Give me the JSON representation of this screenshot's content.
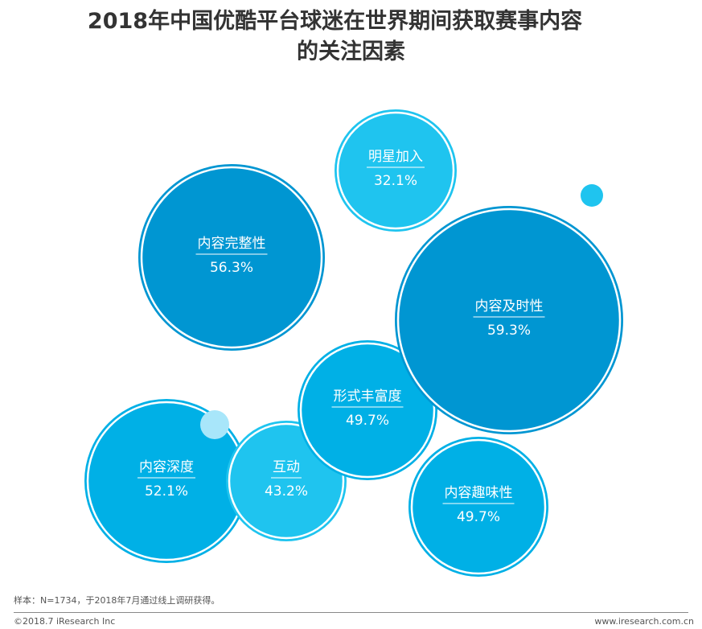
{
  "chart_data": {
    "type": "bubble",
    "title_line1": "2018年中国优酷平台球迷在世界期间获取赛事内容",
    "title_line2": "的关注因素",
    "unit": "%",
    "points": [
      {
        "label": "内容深度",
        "value": 52.1,
        "display": "52.1%",
        "color": "#00b0e6"
      },
      {
        "label": "互动",
        "value": 43.2,
        "display": "43.2%",
        "color": "#1fc4ef"
      },
      {
        "label": "形式丰富度",
        "value": 49.7,
        "display": "49.7%",
        "color": "#00b0e6"
      },
      {
        "label": "内容及时性",
        "value": 59.3,
        "display": "59.3%",
        "color": "#0096d2"
      },
      {
        "label": "内容完整性",
        "value": 56.3,
        "display": "56.3%",
        "color": "#0096d2"
      },
      {
        "label": "明星加入",
        "value": 32.1,
        "display": "32.1%",
        "color": "#1fc4ef"
      },
      {
        "label": "内容趣味性",
        "value": 49.7,
        "display": "49.7%",
        "color": "#00b0e6"
      }
    ],
    "decor_colors": [
      "#1fc4ef",
      "#a8e6fa"
    ]
  },
  "footer": {
    "note": "样本：N=1734，于2018年7月通过线上调研获得。",
    "copyright": "©2018.7 iResearch Inc",
    "website": "www.iresearch.com.cn"
  }
}
